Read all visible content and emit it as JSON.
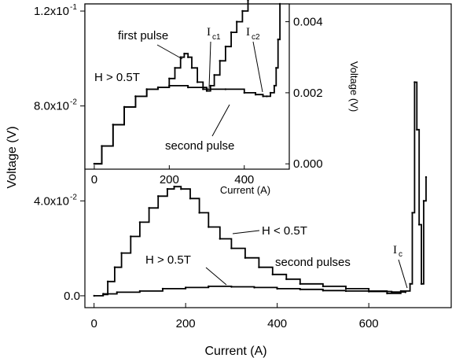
{
  "chart_data": [
    {
      "type": "line",
      "role": "main",
      "xlabel": "Current (A)",
      "ylabel": "Voltage (V)",
      "xlim": [
        -20,
        780
      ],
      "ylim": [
        -0.005,
        0.123
      ],
      "xticks": [
        0,
        200,
        400,
        600
      ],
      "xtick_labels": [
        "0",
        "200",
        "400",
        "600"
      ],
      "yticks": [
        0.0,
        0.04,
        0.08,
        0.12
      ],
      "ytick_labels": [
        "0.0",
        "4.0x10",
        "8.0x10",
        "1.2x10"
      ],
      "ytick_exponents": [
        "",
        "-2",
        "-2",
        "-1"
      ],
      "series": [
        {
          "name": "H < 0.5T",
          "x": [
            20,
            30,
            45,
            60,
            80,
            100,
            120,
            140,
            160,
            175,
            190,
            210,
            230,
            250,
            275,
            300,
            330,
            360,
            390,
            420,
            450,
            500,
            550,
            600,
            640,
            670,
            690,
            695,
            700,
            705,
            710,
            715,
            720,
            725
          ],
          "y": [
            0.0005,
            0.006,
            0.012,
            0.018,
            0.025,
            0.031,
            0.037,
            0.042,
            0.045,
            0.046,
            0.045,
            0.041,
            0.035,
            0.029,
            0.024,
            0.02,
            0.016,
            0.012,
            0.009,
            0.007,
            0.005,
            0.004,
            0.003,
            0.002,
            0.001,
            0.002,
            0.005,
            0.035,
            0.09,
            0.07,
            0.03,
            0.005,
            0.04,
            0.05
          ]
        },
        {
          "name": "H > 0.5T",
          "x": [
            0,
            20,
            50,
            100,
            150,
            200,
            250,
            300,
            350,
            400,
            450,
            500,
            550,
            600,
            650,
            680
          ],
          "y": [
            0.0,
            0.0008,
            0.0015,
            0.002,
            0.003,
            0.0035,
            0.004,
            0.0038,
            0.0035,
            0.003,
            0.0027,
            0.0022,
            0.002,
            0.0018,
            0.0016,
            0.0015
          ]
        }
      ],
      "annotations": [
        {
          "text": "H < 0.5T"
        },
        {
          "text": "H > 0.5T"
        },
        {
          "text": "second pulses"
        },
        {
          "text": "I",
          "subscript": "c"
        }
      ]
    },
    {
      "type": "line",
      "role": "inset",
      "xlabel": "Current (A)",
      "ylabel": "Voltage (V)",
      "xlim": [
        -25,
        520
      ],
      "ylim": [
        -0.00015,
        0.0045
      ],
      "xticks": [
        0,
        200,
        400
      ],
      "xtick_labels": [
        "0",
        "200",
        "400"
      ],
      "yticks": [
        0.0,
        0.002,
        0.004
      ],
      "ytick_labels": [
        "0.000",
        "0.002",
        "0.004"
      ],
      "series": [
        {
          "name": "first pulse",
          "x": [
            0,
            20,
            50,
            80,
            110,
            140,
            170,
            200,
            215,
            230,
            240,
            250,
            260,
            275,
            290,
            300,
            310,
            320,
            335,
            350,
            365,
            380,
            395,
            410
          ],
          "y": [
            0.0,
            0.0005,
            0.0011,
            0.0016,
            0.0019,
            0.0021,
            0.00215,
            0.0024,
            0.0027,
            0.003,
            0.0031,
            0.003,
            0.0027,
            0.0023,
            0.0021,
            0.00205,
            0.0022,
            0.0025,
            0.0029,
            0.0033,
            0.0037,
            0.004,
            0.0043,
            0.0046
          ]
        },
        {
          "name": "second pulse",
          "x": [
            0,
            20,
            50,
            80,
            110,
            140,
            170,
            200,
            250,
            300,
            350,
            400,
            430,
            450,
            460,
            470,
            480,
            485,
            490,
            495
          ],
          "y": [
            0.0,
            0.0005,
            0.0011,
            0.0016,
            0.0019,
            0.0021,
            0.00215,
            0.0022,
            0.00215,
            0.0021,
            0.0021,
            0.002,
            0.00195,
            0.0019,
            0.0019,
            0.002,
            0.0022,
            0.0027,
            0.0035,
            0.0045
          ]
        }
      ],
      "annotations": [
        {
          "text": "first pulse"
        },
        {
          "text": "I",
          "subscript": "c1"
        },
        {
          "text": "I",
          "subscript": "c2"
        },
        {
          "text": "H > 0.5T"
        },
        {
          "text": "second pulse"
        }
      ]
    }
  ]
}
